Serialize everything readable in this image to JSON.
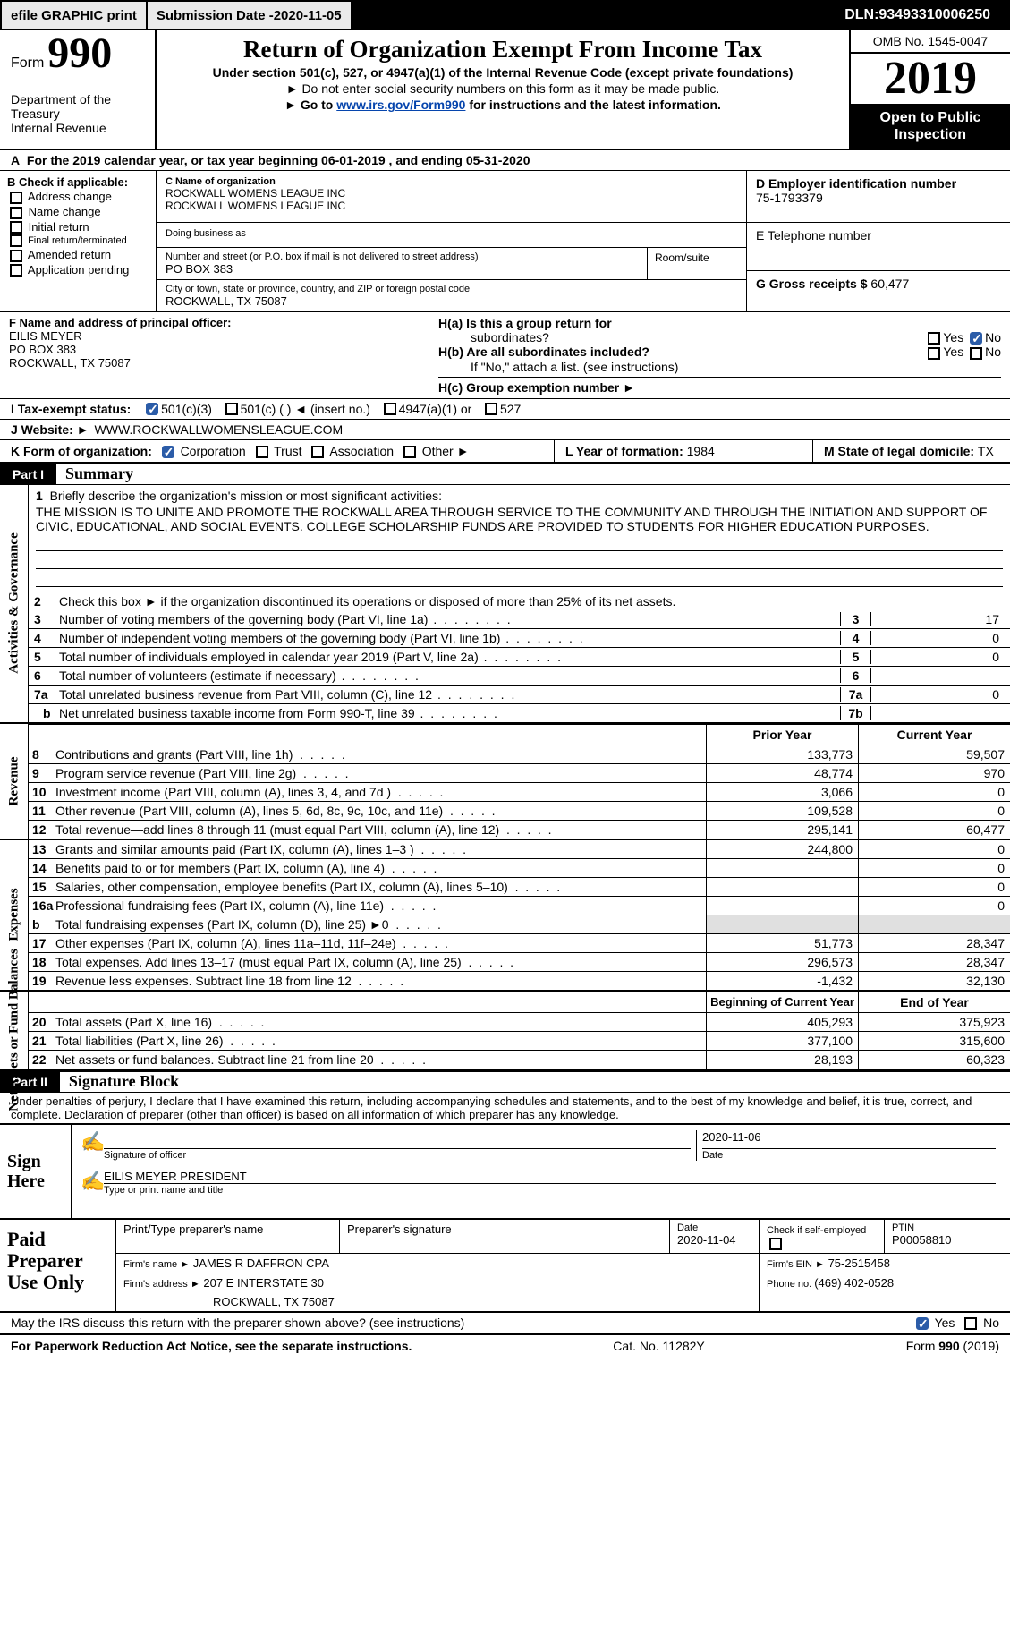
{
  "topbar": {
    "print_btn": "efile GRAPHIC print",
    "sub_date_label": "Submission Date - ",
    "sub_date": "2020-11-05",
    "dln_label": "DLN: ",
    "dln": "93493310006250"
  },
  "header": {
    "form_word": "Form",
    "form_number": "990",
    "title": "Return of Organization Exempt From Income Tax",
    "subtitle": "Under section 501(c), 527, or 4947(a)(1) of the Internal Revenue Code (except private foundations)",
    "line3": "Do not enter social security numbers on this form as it may be made public.",
    "line4_pre": "Go to ",
    "line4_link": "www.irs.gov/Form990",
    "line4_post": " for instructions and the latest information.",
    "dept": "Department of the Treasury\nInternal Revenue",
    "omb": "OMB No. 1545-0047",
    "year": "2019",
    "inspection": "Open to Public Inspection"
  },
  "period": {
    "prefix": "For the 2019 calendar year, or tax year beginning ",
    "begin": "06-01-2019",
    "mid": "   , and ending ",
    "end": "05-31-2020"
  },
  "box_b": {
    "title": "B Check if applicable:",
    "items": [
      "Address change",
      "Name change",
      "Initial return",
      "Final return/terminated",
      "Amended return",
      "Application pending"
    ]
  },
  "box_c": {
    "label": "C Name of organization",
    "org1": "ROCKWALL WOMENS LEAGUE INC",
    "org2": "ROCKWALL WOMENS LEAGUE INC",
    "dba_label": "Doing business as",
    "addr_label": "Number and street (or P.O. box if mail is not delivered to street address)",
    "room_label": "Room/suite",
    "street": "PO BOX 383",
    "city_label": "City or town, state or province, country, and ZIP or foreign postal code",
    "city": "ROCKWALL, TX  75087"
  },
  "box_d": {
    "label": "D Employer identification number",
    "ein": "75-1793379",
    "phone_label": "E Telephone number",
    "phone": "",
    "gross_label": "G Gross receipts $ ",
    "gross": "60,477"
  },
  "box_f": {
    "label": "F Name and address of principal officer:",
    "name": "EILIS MEYER",
    "l1": "PO BOX 383",
    "l2": "ROCKWALL, TX  75087"
  },
  "box_h": {
    "ha_label": "H(a)  Is this a group return for",
    "ha_label2": "subordinates?",
    "hb_label": "H(b)  Are all subordinates included?",
    "hb_note": "If \"No,\" attach a list. (see instructions)",
    "hc_label": "H(c)  Group exemption number ►",
    "yes": "Yes",
    "no": "No"
  },
  "row_i": {
    "label": "I  Tax-exempt status:",
    "opt1": "501(c)(3)",
    "opt2": "501(c) (   ) ◄ (insert no.)",
    "opt3": "4947(a)(1) or",
    "opt4": "527"
  },
  "row_j": {
    "label": "J  Website: ►",
    "value": "WWW.ROCKWALLWOMENSLEAGUE.COM"
  },
  "row_k": {
    "label": "K Form of organization:",
    "opts": [
      "Corporation",
      "Trust",
      "Association",
      "Other ►"
    ]
  },
  "row_lm": {
    "l_label": "L Year of formation: ",
    "l_val": "1984",
    "m_label": "M State of legal domicile: ",
    "m_val": "TX"
  },
  "parts": {
    "p1_label": "Part I",
    "p1_title": "Summary",
    "p2_label": "Part II",
    "p2_title": "Signature Block"
  },
  "vert_labels": {
    "activities": "Activities & Governance",
    "revenue": "Revenue",
    "expenses": "Expenses",
    "netassets": "Net Assets or Fund Balances"
  },
  "mission": {
    "label": "Briefly describe the organization's mission or most significant activities:",
    "text": "THE MISSION IS TO UNITE AND PROMOTE THE ROCKWALL AREA THROUGH SERVICE TO THE COMMUNITY AND THROUGH THE INITIATION AND SUPPORT OF CIVIC, EDUCATIONAL, AND SOCIAL EVENTS. COLLEGE SCHOLARSHIP FUNDS ARE PROVIDED TO STUDENTS FOR HIGHER EDUCATION PURPOSES."
  },
  "lines": {
    "l2": "Check this box ►   if the organization discontinued its operations or disposed of more than 25% of its net assets.",
    "l3": "Number of voting members of the governing body (Part VI, line 1a)",
    "l4": "Number of independent voting members of the governing body (Part VI, line 1b)",
    "l5": "Total number of individuals employed in calendar year 2019 (Part V, line 2a)",
    "l6": "Total number of volunteers (estimate if necessary)",
    "l7a": "Total unrelated business revenue from Part VIII, column (C), line 12",
    "l7b": "Net unrelated business taxable income from Form 990-T, line 39",
    "v3": "17",
    "v4": "0",
    "v5": "0",
    "v6": "",
    "v7a": "0",
    "v7b": ""
  },
  "headers": {
    "prior": "Prior Year",
    "current": "Current Year",
    "beg": "Beginning of Current Year",
    "end": "End of Year"
  },
  "rev": [
    {
      "n": "8",
      "desc": "Contributions and grants (Part VIII, line 1h)",
      "p": "133,773",
      "c": "59,507"
    },
    {
      "n": "9",
      "desc": "Program service revenue (Part VIII, line 2g)",
      "p": "48,774",
      "c": "970"
    },
    {
      "n": "10",
      "desc": "Investment income (Part VIII, column (A), lines 3, 4, and 7d )",
      "p": "3,066",
      "c": "0"
    },
    {
      "n": "11",
      "desc": "Other revenue (Part VIII, column (A), lines 5, 6d, 8c, 9c, 10c, and 11e)",
      "p": "109,528",
      "c": "0"
    },
    {
      "n": "12",
      "desc": "Total revenue—add lines 8 through 11 (must equal Part VIII, column (A), line 12)",
      "p": "295,141",
      "c": "60,477"
    }
  ],
  "exp": [
    {
      "n": "13",
      "desc": "Grants and similar amounts paid (Part IX, column (A), lines 1–3 )",
      "p": "244,800",
      "c": "0"
    },
    {
      "n": "14",
      "desc": "Benefits paid to or for members (Part IX, column (A), line 4)",
      "p": "",
      "c": "0"
    },
    {
      "n": "15",
      "desc": "Salaries, other compensation, employee benefits (Part IX, column (A), lines 5–10)",
      "p": "",
      "c": "0"
    },
    {
      "n": "16a",
      "desc": "Professional fundraising fees (Part IX, column (A), line 11e)",
      "p": "",
      "c": "0"
    },
    {
      "n": "b",
      "desc": "Total fundraising expenses (Part IX, column (D), line 25) ►0",
      "p": "grey",
      "c": "grey"
    },
    {
      "n": "17",
      "desc": "Other expenses (Part IX, column (A), lines 11a–11d, 11f–24e)",
      "p": "51,773",
      "c": "28,347"
    },
    {
      "n": "18",
      "desc": "Total expenses. Add lines 13–17 (must equal Part IX, column (A), line 25)",
      "p": "296,573",
      "c": "28,347"
    },
    {
      "n": "19",
      "desc": "Revenue less expenses. Subtract line 18 from line 12",
      "p": "-1,432",
      "c": "32,130"
    }
  ],
  "net": [
    {
      "n": "20",
      "desc": "Total assets (Part X, line 16)",
      "p": "405,293",
      "c": "375,923"
    },
    {
      "n": "21",
      "desc": "Total liabilities (Part X, line 26)",
      "p": "377,100",
      "c": "315,600"
    },
    {
      "n": "22",
      "desc": "Net assets or fund balances. Subtract line 21 from line 20",
      "p": "28,193",
      "c": "60,323"
    }
  ],
  "penalties": "Under penalties of perjury, I declare that I have examined this return, including accompanying schedules and statements, and to the best of my knowledge and belief, it is true, correct, and complete. Declaration of preparer (other than officer) is based on all information of which preparer has any knowledge.",
  "sign": {
    "here": "Sign Here",
    "sig_of_officer": "Signature of officer",
    "date_label": "Date",
    "date": "2020-11-06",
    "name_title": "EILIS MEYER  PRESIDENT",
    "name_title_label": "Type or print name and title"
  },
  "preparer": {
    "label": "Paid Preparer Use Only",
    "h_name": "Print/Type preparer's name",
    "h_sig": "Preparer's signature",
    "h_date_label": "Date",
    "h_date": "2020-11-04",
    "h_check_label": "Check        if self-employed",
    "h_ptin_label": "PTIN",
    "h_ptin": "P00058810",
    "firm_name_label": "Firm's name     ►",
    "firm_name": "JAMES R DAFFRON CPA",
    "firm_ein_label": "Firm's EIN ►",
    "firm_ein": "75-2515458",
    "firm_addr_label": "Firm's address ►",
    "firm_addr": "207 E INTERSTATE 30",
    "firm_city": "ROCKWALL, TX  75087",
    "firm_phone_label": "Phone no. ",
    "firm_phone": "(469) 402-0528"
  },
  "irs_discuss": "May the IRS discuss this return with the preparer shown above? (see instructions)",
  "footer": {
    "left": "For Paperwork Reduction Act Notice, see the separate instructions.",
    "mid": "Cat. No. 11282Y",
    "right_pre": "Form ",
    "right_bold": "990",
    "right_post": " (2019)"
  },
  "labels": {
    "yes": "Yes",
    "no": "No"
  }
}
